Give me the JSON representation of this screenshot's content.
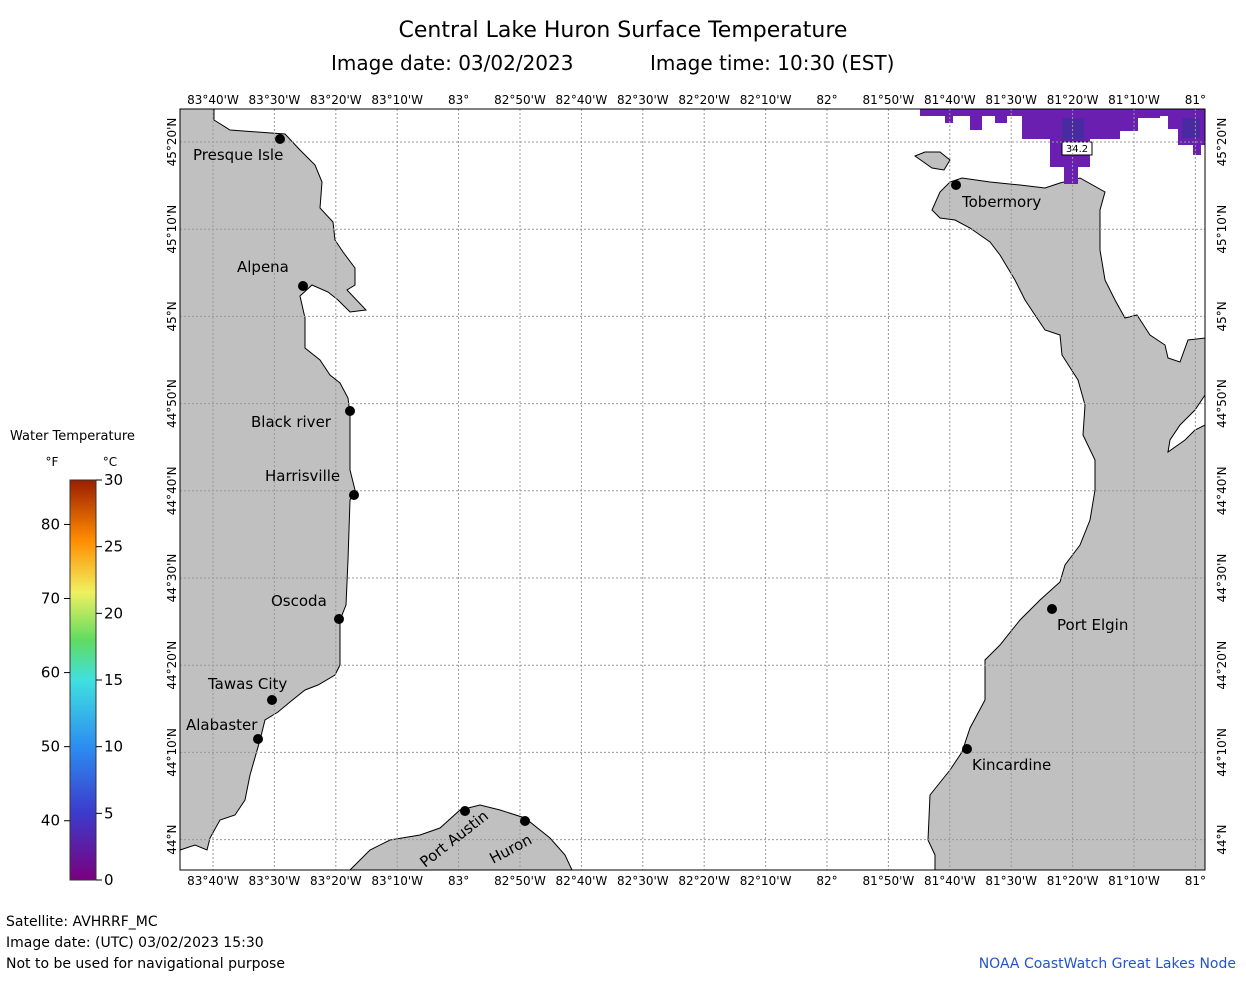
{
  "header": {
    "title": "Central Lake Huron Surface Temperature",
    "image_date": "Image date: 03/02/2023",
    "image_time": "Image time: 10:30 (EST)"
  },
  "axes": {
    "lon_labels": [
      "83°40'W",
      "83°30'W",
      "83°20'W",
      "83°10'W",
      "83°",
      "82°50'W",
      "82°40'W",
      "82°30'W",
      "82°20'W",
      "82°10'W",
      "82°",
      "81°50'W",
      "81°40'W",
      "81°30'W",
      "81°20'W",
      "81°10'W",
      "81°"
    ],
    "lat_labels": [
      "45°20'N",
      "45°10'N",
      "45°N",
      "44°50'N",
      "44°40'N",
      "44°30'N",
      "44°20'N",
      "44°10'N",
      "44°N"
    ]
  },
  "places": [
    {
      "name": "Presque Isle"
    },
    {
      "name": "Alpena"
    },
    {
      "name": "Black river"
    },
    {
      "name": "Harrisville"
    },
    {
      "name": "Oscoda"
    },
    {
      "name": "Tawas City"
    },
    {
      "name": "Alabaster"
    },
    {
      "name": "Port Austin"
    },
    {
      "name": "Huron"
    },
    {
      "name": "Tobermory"
    },
    {
      "name": "Port Elgin"
    },
    {
      "name": "Kincardine"
    }
  ],
  "ice_label": "34.2",
  "legend": {
    "title": "Water Temperature",
    "f_unit": "°F",
    "c_unit": "°C",
    "f_ticks": [
      "80",
      "70",
      "60",
      "50",
      "40"
    ],
    "c_ticks": [
      "30",
      "25",
      "20",
      "15",
      "10",
      "5",
      "0"
    ]
  },
  "footer": {
    "satellite": "Satellite: AVHRRF_MC",
    "utc_date": "Image date: (UTC) 03/02/2023  15:30",
    "disclaimer": "Not to be used for navigational purpose",
    "credit": "NOAA CoastWatch Great Lakes Node"
  },
  "colors": {
    "land": "#c0c0c0",
    "water": "#ffffff",
    "grid": "#999999",
    "frame": "#000000",
    "data_purple": "#6a1fb0",
    "credit_text": "#2255cc"
  }
}
